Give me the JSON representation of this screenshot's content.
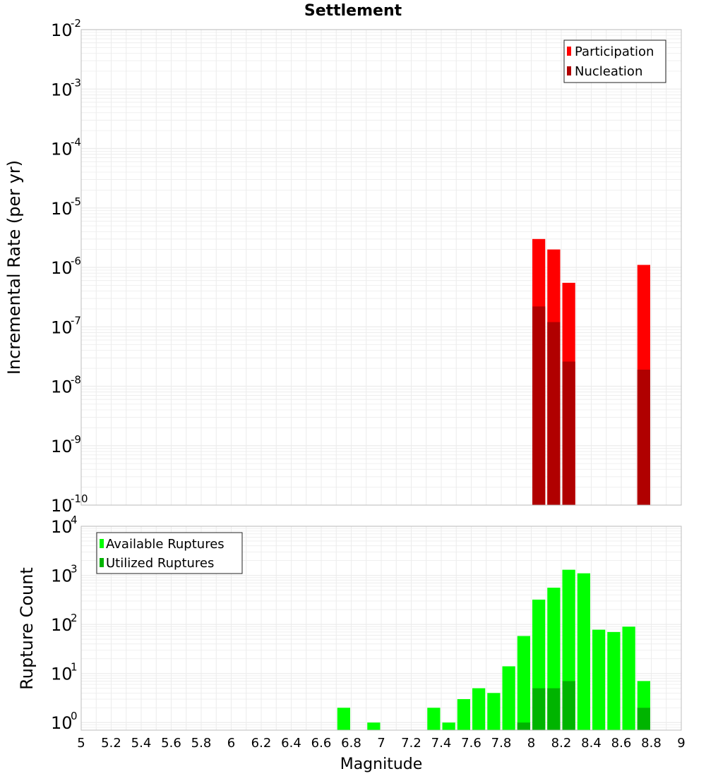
{
  "chart_data": [
    {
      "type": "bar",
      "title": "Settlement",
      "ylabel": "Incremental Rate (per yr)",
      "yscale": "log",
      "ylim": [
        1e-10,
        0.01
      ],
      "ytick_exponents": [
        -10,
        -9,
        -8,
        -7,
        -6,
        -5,
        -4,
        -3,
        -2
      ],
      "xlim": [
        5,
        9
      ],
      "bin_width": 0.1,
      "legend": {
        "location": "top-right",
        "entries": [
          "Participation",
          "Nucleation"
        ]
      },
      "series": [
        {
          "name": "Participation",
          "color": "#ff0000",
          "x": [
            8.05,
            8.15,
            8.25,
            8.75
          ],
          "values": [
            3e-06,
            2e-06,
            5.5e-07,
            1.1e-06
          ]
        },
        {
          "name": "Nucleation",
          "color": "#b00000",
          "x": [
            8.05,
            8.15,
            8.25,
            8.75
          ],
          "values": [
            2.2e-07,
            1.2e-07,
            2.6e-08,
            1.9e-08
          ]
        }
      ]
    },
    {
      "type": "bar",
      "ylabel": "Rupture Count",
      "xlabel": "Magnitude",
      "yscale": "log",
      "ylim": [
        0.7,
        10000
      ],
      "ytick_exponents": [
        0,
        1,
        2,
        3,
        4
      ],
      "xlim": [
        5,
        9
      ],
      "xticks": [
        "5",
        "5.2",
        "5.4",
        "5.6",
        "5.8",
        "6",
        "6.2",
        "6.4",
        "6.6",
        "6.8",
        "7",
        "7.2",
        "7.4",
        "7.6",
        "7.8",
        "8",
        "8.2",
        "8.4",
        "8.6",
        "8.8",
        "9"
      ],
      "bin_width": 0.1,
      "legend": {
        "location": "top-left",
        "entries": [
          "Available Ruptures",
          "Utilized Ruptures"
        ]
      },
      "series": [
        {
          "name": "Available Ruptures",
          "color": "#00ff00",
          "x": [
            6.75,
            6.95,
            7.35,
            7.45,
            7.55,
            7.65,
            7.75,
            7.85,
            7.95,
            8.05,
            8.15,
            8.25,
            8.35,
            8.45,
            8.55,
            8.65,
            8.75
          ],
          "values": [
            2,
            1,
            2,
            1,
            3,
            5,
            4,
            14,
            58,
            320,
            560,
            1300,
            1100,
            78,
            70,
            90,
            7
          ]
        },
        {
          "name": "Utilized Ruptures",
          "color": "#00b400",
          "x": [
            7.95,
            8.05,
            8.15,
            8.25,
            8.75
          ],
          "values": [
            1,
            5,
            5,
            7,
            2
          ]
        }
      ]
    }
  ],
  "colors": {
    "grid": "#ececec",
    "frame": "#bdbdbd"
  }
}
